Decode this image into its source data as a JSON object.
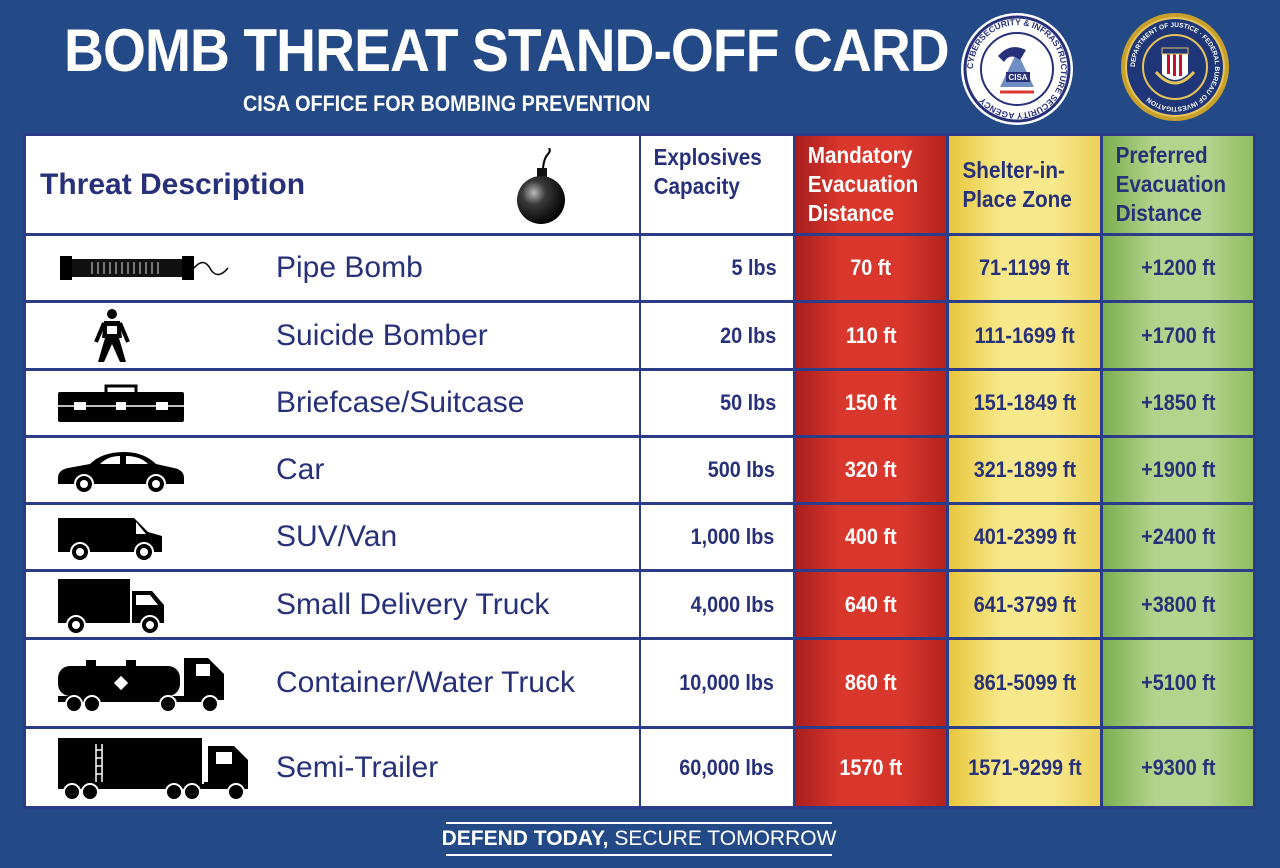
{
  "header": {
    "title": "BOMB THREAT STAND-OFF CARD",
    "subtitle": "CISA OFFICE FOR BOMBING PREVENTION",
    "cisa_seal": {
      "ring_text": "CYBERSECURITY & INFRASTRUCTURE SECURITY AGENCY",
      "center": "CISA"
    },
    "fbi_seal": {
      "ring_text": "DEPARTMENT OF JUSTICE · FEDERAL BUREAU OF INVESTIGATION"
    }
  },
  "columns": {
    "threat": "Threat Description",
    "capacity": [
      "Explosives",
      "Capacity"
    ],
    "mandatory": [
      "Mandatory",
      "Evacuation",
      "Distance"
    ],
    "shelter": [
      "Shelter-in-",
      "Place Zone"
    ],
    "preferred": [
      "Preferred",
      "Evacuation",
      "Distance"
    ]
  },
  "rows": [
    {
      "icon": "pipe-bomb-icon",
      "threat": "Pipe Bomb",
      "capacity": "5 lbs",
      "mandatory": "70 ft",
      "shelter": "71-1199 ft",
      "preferred": "+1200 ft"
    },
    {
      "icon": "suicide-bomber-icon",
      "threat": "Suicide Bomber",
      "capacity": "20 lbs",
      "mandatory": "110 ft",
      "shelter": "111-1699 ft",
      "preferred": "+1700 ft"
    },
    {
      "icon": "briefcase-icon",
      "threat": "Briefcase/Suitcase",
      "capacity": "50 lbs",
      "mandatory": "150 ft",
      "shelter": "151-1849 ft",
      "preferred": "+1850 ft"
    },
    {
      "icon": "car-icon",
      "threat": "Car",
      "capacity": "500 lbs",
      "mandatory": "320 ft",
      "shelter": "321-1899 ft",
      "preferred": "+1900 ft"
    },
    {
      "icon": "van-icon",
      "threat": "SUV/Van",
      "capacity": "1,000 lbs",
      "mandatory": "400 ft",
      "shelter": "401-2399 ft",
      "preferred": "+2400 ft"
    },
    {
      "icon": "delivery-truck-icon",
      "threat": "Small Delivery Truck",
      "capacity": "4,000 lbs",
      "mandatory": "640 ft",
      "shelter": "641-3799 ft",
      "preferred": "+3800 ft"
    },
    {
      "icon": "tanker-truck-icon",
      "threat": "Container/Water Truck",
      "capacity": "10,000 lbs",
      "mandatory": "860 ft",
      "shelter": "861-5099 ft",
      "preferred": "+5100 ft"
    },
    {
      "icon": "semi-trailer-icon",
      "threat": "Semi-Trailer",
      "capacity": "60,000 lbs",
      "mandatory": "1570 ft",
      "shelter": "1571-9299 ft",
      "preferred": "+9300 ft"
    }
  ],
  "footer": {
    "bold": "DEFEND TODAY,",
    "rest": " SECURE TOMORROW"
  },
  "colors": {
    "background": "#234a86",
    "mandatory": "#d9372c",
    "shelter": "#f7e88b",
    "preferred": "#b3d48c",
    "text": "#27317a"
  }
}
